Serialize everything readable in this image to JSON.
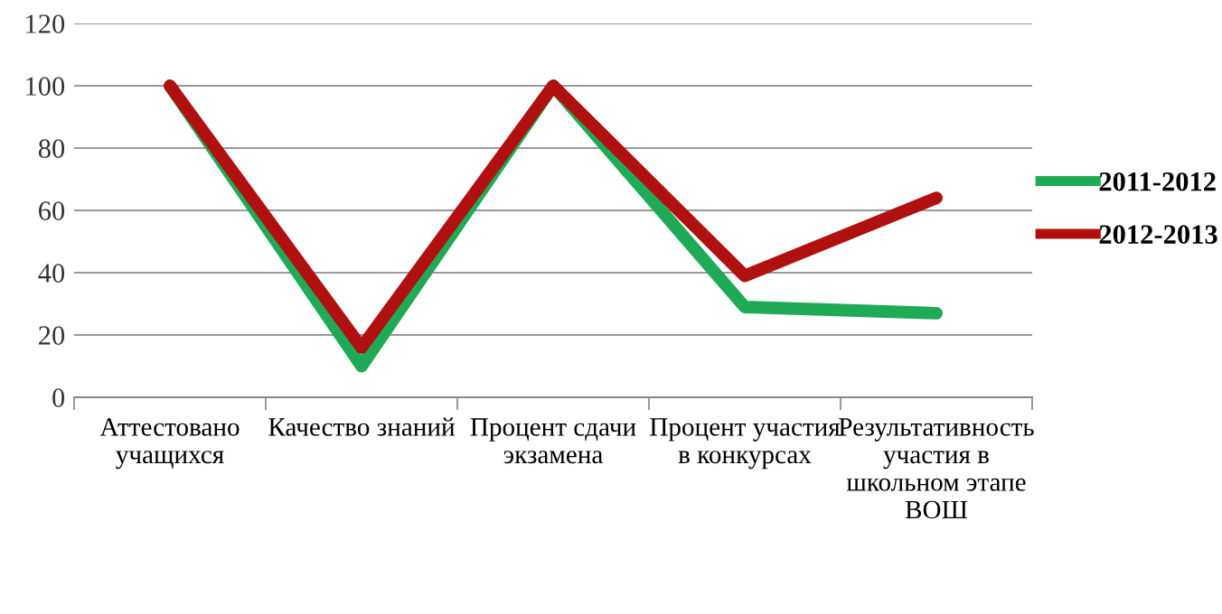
{
  "chart_data": {
    "type": "line",
    "categories": [
      "Аттестовано\nучащихся",
      "Качество знаний",
      "Процент сдачи\nэкзамена",
      "Процент участия\nв конкурсах",
      "Результативность\nучастия в\nшкольном этапе\nВОШ"
    ],
    "series": [
      {
        "name": "2011-2012",
        "color": "#1faa55",
        "values": [
          100,
          10,
          100,
          29,
          27
        ]
      },
      {
        "name": "2012-2013",
        "color": "#b01010",
        "values": [
          100,
          16,
          100,
          39,
          64
        ]
      }
    ],
    "ylim": [
      0,
      120
    ],
    "yticks": [
      0,
      20,
      40,
      60,
      80,
      100,
      120
    ],
    "grid": "y",
    "legend": "right",
    "marker": "none",
    "line_style": "solid"
  }
}
